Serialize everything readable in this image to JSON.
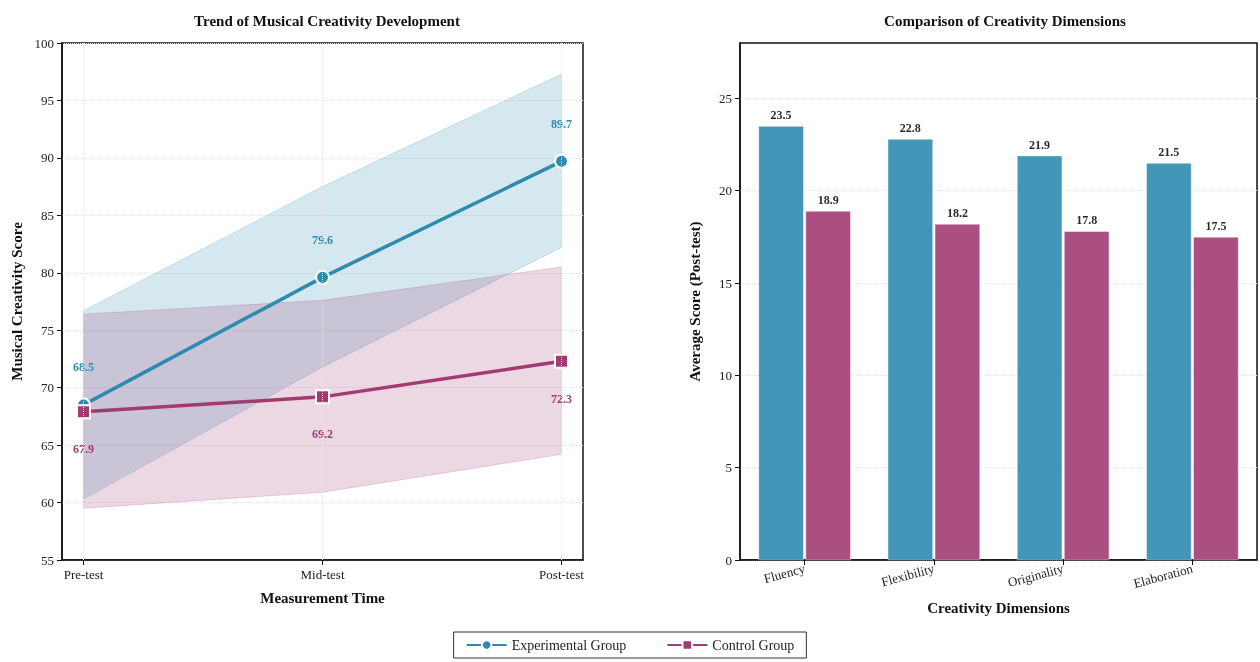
{
  "chart_data": [
    {
      "type": "line",
      "title": "Trend of Musical Creativity Development",
      "xlabel": "Measurement Time",
      "ylabel": "Musical Creativity Score",
      "categories": [
        "Pre-test",
        "Mid-test",
        "Post-test"
      ],
      "series": [
        {
          "name": "Experimental Group",
          "color": "#2e8bb0",
          "marker": "circle",
          "values": [
            68.5,
            79.6,
            89.7
          ],
          "lower": [
            60.3,
            71.8,
            82.2
          ],
          "upper": [
            76.7,
            87.5,
            97.3
          ]
        },
        {
          "name": "Control Group",
          "color": "#a23b72",
          "marker": "square",
          "values": [
            67.9,
            69.2,
            72.3
          ],
          "lower": [
            59.5,
            60.9,
            64.2
          ],
          "upper": [
            76.4,
            77.6,
            80.5
          ]
        }
      ],
      "ylim": [
        55,
        100
      ],
      "yticks": [
        55,
        60,
        65,
        70,
        75,
        80,
        85,
        90,
        95,
        100
      ],
      "grid": true,
      "legend": "bottom",
      "data_labels": true
    },
    {
      "type": "bar",
      "title": "Comparison of Creativity Dimensions",
      "xlabel": "Creativity Dimensions",
      "ylabel": "Average Score (Post-test)",
      "categories": [
        "Fluency",
        "Flexibility",
        "Originality",
        "Elaboration"
      ],
      "series": [
        {
          "color": "#2e8bb0",
          "values": [
            23.5,
            22.8,
            21.9,
            21.5
          ]
        },
        {
          "color": "#a23b72",
          "values": [
            18.9,
            18.2,
            17.8,
            17.5
          ]
        }
      ],
      "ylim": [
        0,
        28
      ],
      "yticks": [
        0,
        5,
        10,
        15,
        20,
        25
      ],
      "grid": "y",
      "data_labels": true
    }
  ]
}
